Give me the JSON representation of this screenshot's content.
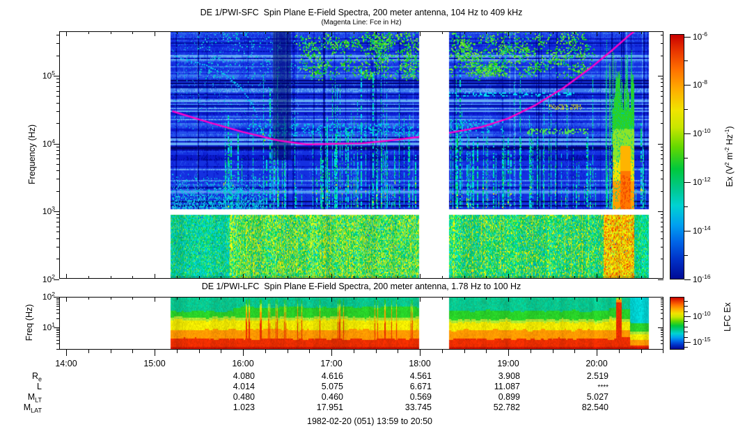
{
  "titles": {
    "sfc_title": "DE 1/PWI-SFC  Spin Plane E-Field Spectra, 200 meter antenna, 104 Hz to 409 kHz",
    "sfc_subtitle": "(Magenta Line: Fce in Hz)",
    "lfc_title": "DE 1/PWI-LFC  Spin Plane E-Field Spectra, 200 meter antenna, 1.78 Hz to 100 Hz",
    "footer": "1982-02-20 (051) 13:59 to 20:50"
  },
  "chart_data": [
    {
      "id": "sfc",
      "type": "heatmap",
      "subtype": "frequency-time spectrogram",
      "title": "DE 1/PWI-SFC  Spin Plane E-Field Spectra, 200 meter antenna, 104 Hz to 409 kHz",
      "subtitle": "(Magenta Line: Fce in Hz)",
      "ylabel": "Frequency (Hz)",
      "yscale": "log",
      "yrange_hz": [
        100,
        470000
      ],
      "ytick_exponents": [
        2,
        3,
        4,
        5
      ],
      "xtick_labels": [
        "14:00",
        "15:00",
        "16:00",
        "17:00",
        "18:00",
        "19:00",
        "20:00"
      ],
      "coverage": {
        "data_start": "15:11",
        "data_end": "20:35",
        "gap_start": "18:00",
        "gap_end": "18:20",
        "band_split_hz": 1000
      },
      "colorbar": {
        "label_segments": [
          {
            "t": "Ex (V"
          },
          {
            "t": "2",
            "sup": true
          },
          {
            "t": " m"
          },
          {
            "t": "-2",
            "sup": true
          },
          {
            "t": " Hz"
          },
          {
            "t": "-1",
            "sup": true
          },
          {
            "t": ")"
          }
        ],
        "tick_exponents": [
          -6,
          -7,
          -8,
          -9,
          -10,
          -11,
          -12,
          -13,
          -14,
          -15,
          -16
        ],
        "labeled_exponents": [
          -6,
          -8,
          -10,
          -12,
          -14,
          -16
        ],
        "top_value": "1e-6",
        "bottom_value": "1e-16"
      },
      "magenta_line": {
        "desc": "Fce in Hz (electron cyclotron frequency)",
        "t_hours_after_1400": [
          1.2,
          1.61,
          2.0,
          2.4,
          2.72,
          3.0,
          3.35,
          3.66,
          3.99,
          4.33,
          4.69,
          5.0,
          5.31,
          5.63,
          5.94,
          6.18,
          6.38,
          6.43
        ],
        "khz": [
          30.0,
          20.6,
          14.8,
          11.1,
          9.7,
          9.9,
          10.1,
          11.1,
          12.5,
          14.4,
          17.4,
          23.5,
          37.0,
          67.0,
          133,
          241,
          408,
          459
        ]
      }
    },
    {
      "id": "lfc",
      "type": "heatmap",
      "subtype": "frequency-time spectrogram",
      "title": "DE 1/PWI-LFC  Spin Plane E-Field Spectra, 200 meter antenna, 1.78 Hz to 100 Hz",
      "ylabel": "Freq (Hz)",
      "yscale": "log",
      "yrange_hz": [
        1.78,
        100
      ],
      "ytick_exponents": [
        2,
        1
      ],
      "xtick_labels": [
        "14:00",
        "15:00",
        "16:00",
        "17:00",
        "18:00",
        "19:00",
        "20:00"
      ],
      "coverage": {
        "data_start": "15:11",
        "data_end": "20:35",
        "gap_start": "18:00",
        "gap_end": "18:20"
      },
      "colorbar": {
        "label": "LFC Ex",
        "tick_exponents": [
          -7,
          -8,
          -9,
          -10,
          -11,
          -12,
          -13,
          -14,
          -15,
          -16
        ],
        "labeled_exponents": [
          -10,
          -15
        ]
      }
    }
  ],
  "annotations": {
    "row_labels": [
      {
        "main": "R",
        "sub": "e"
      },
      {
        "main": "L",
        "sub": ""
      },
      {
        "main": "M",
        "sub": "LT"
      },
      {
        "main": "M",
        "sub": "LAT"
      }
    ],
    "columns": [
      "16:00",
      "17:00",
      "18:00",
      "19:00",
      "20:00"
    ],
    "values": [
      [
        "4.080",
        "4.616",
        "4.561",
        "3.908",
        "2.519"
      ],
      [
        "4.014",
        "5.075",
        "6.671",
        "11.087",
        "****"
      ],
      [
        "0.480",
        "0.460",
        "0.569",
        "0.899",
        "5.027"
      ],
      [
        "1.023",
        "17.951",
        "33.745",
        "52.782",
        "82.540"
      ]
    ]
  },
  "colors": {
    "background": "#FFFFFF",
    "magenta": "#FF00C8",
    "colormap_stops": [
      "#C80000 0%",
      "#E63000 6%",
      "#FF6E00 14%",
      "#FFAA00 22%",
      "#F0E400 31%",
      "#C8E600 38%",
      "#64D800 46%",
      "#00C83C 55%",
      "#00C88C 63%",
      "#00D2D2 70%",
      "#00A0F0 78%",
      "#0064E6 85%",
      "#0032C8 92%",
      "#000A96 100%"
    ]
  }
}
